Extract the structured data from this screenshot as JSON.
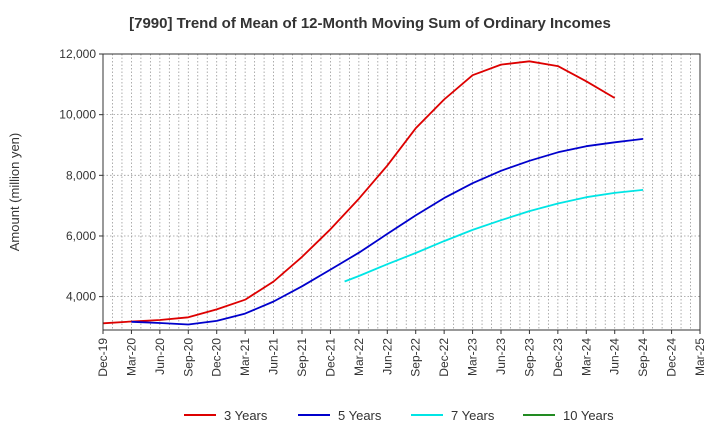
{
  "chart_data": {
    "type": "line",
    "title": "[7990]  Trend of Mean of 12-Month Moving Sum of Ordinary Incomes",
    "xlabel": "",
    "ylabel": "Amount (million yen)",
    "ylim": [
      2900,
      12000
    ],
    "yticks": [
      4000,
      6000,
      8000,
      10000,
      12000
    ],
    "ytick_labels": [
      "4,000",
      "6,000",
      "8,000",
      "10,000",
      "12,000"
    ],
    "x_tick_labels": [
      "Dec-19",
      "Mar-20",
      "Jun-20",
      "Sep-20",
      "Dec-20",
      "Mar-21",
      "Jun-21",
      "Sep-21",
      "Dec-21",
      "Mar-22",
      "Jun-22",
      "Sep-22",
      "Dec-22",
      "Mar-23",
      "Jun-23",
      "Sep-23",
      "Dec-23",
      "Mar-24",
      "Jun-24",
      "Sep-24",
      "Dec-24",
      "Mar-25"
    ],
    "grid": true,
    "legend_position": "bottom",
    "series": [
      {
        "name": "3 Years",
        "color": "#dd0000",
        "points": [
          [
            0,
            3120
          ],
          [
            1,
            3180
          ],
          [
            2,
            3230
          ],
          [
            3,
            3320
          ],
          [
            4,
            3580
          ],
          [
            5,
            3900
          ],
          [
            6,
            4500
          ],
          [
            7,
            5310
          ],
          [
            8,
            6220
          ],
          [
            9,
            7230
          ],
          [
            10,
            8320
          ],
          [
            11,
            9550
          ],
          [
            12,
            10500
          ],
          [
            13,
            11300
          ],
          [
            14,
            11650
          ],
          [
            15,
            11760
          ],
          [
            16,
            11600
          ],
          [
            17,
            11100
          ],
          [
            18,
            10550
          ]
        ]
      },
      {
        "name": "5 Years",
        "color": "#0000cc",
        "points": [
          [
            1,
            3170
          ],
          [
            2,
            3130
          ],
          [
            3,
            3080
          ],
          [
            4,
            3200
          ],
          [
            5,
            3440
          ],
          [
            6,
            3840
          ],
          [
            7,
            4340
          ],
          [
            8,
            4890
          ],
          [
            9,
            5450
          ],
          [
            10,
            6070
          ],
          [
            11,
            6680
          ],
          [
            12,
            7250
          ],
          [
            13,
            7740
          ],
          [
            14,
            8150
          ],
          [
            15,
            8480
          ],
          [
            16,
            8760
          ],
          [
            17,
            8960
          ],
          [
            18,
            9090
          ],
          [
            19,
            9200
          ]
        ]
      },
      {
        "name": "7 Years",
        "color": "#00e5e5",
        "points": [
          [
            8.5,
            4500
          ],
          [
            9,
            4680
          ],
          [
            10,
            5070
          ],
          [
            11,
            5440
          ],
          [
            12,
            5830
          ],
          [
            13,
            6200
          ],
          [
            14,
            6520
          ],
          [
            15,
            6820
          ],
          [
            16,
            7070
          ],
          [
            17,
            7280
          ],
          [
            18,
            7420
          ],
          [
            19,
            7520
          ]
        ]
      },
      {
        "name": "10 Years",
        "color": "#228b22",
        "points": []
      }
    ]
  }
}
